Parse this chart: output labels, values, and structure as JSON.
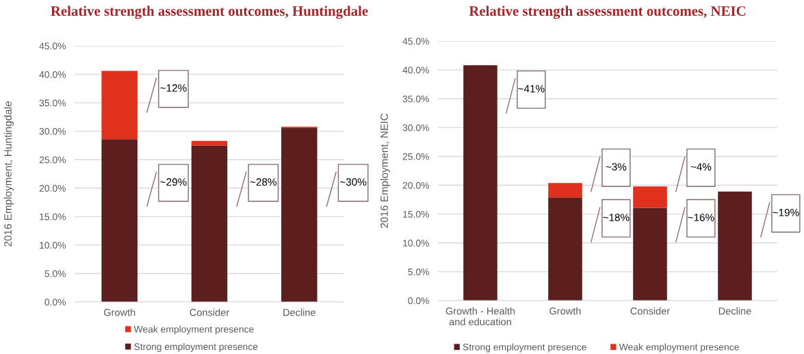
{
  "chart_data": [
    {
      "type": "bar",
      "title": "Relative strength assessment outcomes, Huntingdale",
      "ylabel": "2016 Employment, Huntingdale",
      "categories": [
        "Growth",
        "Consider",
        "Decline"
      ],
      "stacked": true,
      "series": [
        {
          "name": "Strong employment presence",
          "color": "#5c1f1d",
          "values": [
            28.6,
            27.5,
            30.6
          ]
        },
        {
          "name": "Weak employment presence",
          "color": "#e0301e",
          "values": [
            12.0,
            0.8,
            0.2
          ]
        }
      ],
      "ylim": [
        0,
        45
      ],
      "yticks": [
        {
          "value": 0,
          "label": "0.0%"
        },
        {
          "value": 5,
          "label": "5.0%"
        },
        {
          "value": 10,
          "label": "10.0%"
        },
        {
          "value": 15,
          "label": "15.0%"
        },
        {
          "value": 20,
          "label": "20.0%"
        },
        {
          "value": 25,
          "label": "25.0%"
        },
        {
          "value": 30,
          "label": "30.0%"
        },
        {
          "value": 35,
          "label": "35.0%"
        },
        {
          "value": 40,
          "label": "40.0%"
        },
        {
          "value": 45,
          "label": "45.0%"
        }
      ],
      "grid": "y",
      "legend": "bottom",
      "annotations": [
        "~12%",
        "~29%",
        "~28%",
        "~30%"
      ]
    },
    {
      "type": "bar",
      "title": "Relative strength assessment outcomes, NEIC",
      "ylabel": "2016 Employment, NEIC",
      "categories": [
        "Growth - Health\nand education",
        "Growth",
        "Consider",
        "Decline"
      ],
      "stacked": true,
      "series": [
        {
          "name": "Strong employment presence",
          "color": "#5c1f1d",
          "values": [
            40.8,
            17.9,
            16.1,
            18.9
          ]
        },
        {
          "name": "Weak employment presence",
          "color": "#e0301e",
          "values": [
            null,
            2.5,
            3.7,
            null
          ]
        }
      ],
      "ylim": [
        0,
        45
      ],
      "yticks": [
        {
          "value": 0,
          "label": "0.0%"
        },
        {
          "value": 5,
          "label": "5.0%"
        },
        {
          "value": 10,
          "label": "10.0%"
        },
        {
          "value": 15,
          "label": "15.0%"
        },
        {
          "value": 20,
          "label": "20.0%"
        },
        {
          "value": 25,
          "label": "25.0%"
        },
        {
          "value": 30,
          "label": "30.0%"
        },
        {
          "value": 35,
          "label": "35.0%"
        },
        {
          "value": 40,
          "label": "40.0%"
        },
        {
          "value": 45,
          "label": "45.0%"
        }
      ],
      "grid": "y",
      "legend": "bottom",
      "annotations": [
        "~41%",
        "~3%",
        "~18%",
        "~4%",
        "~16%",
        "~19%"
      ]
    }
  ]
}
